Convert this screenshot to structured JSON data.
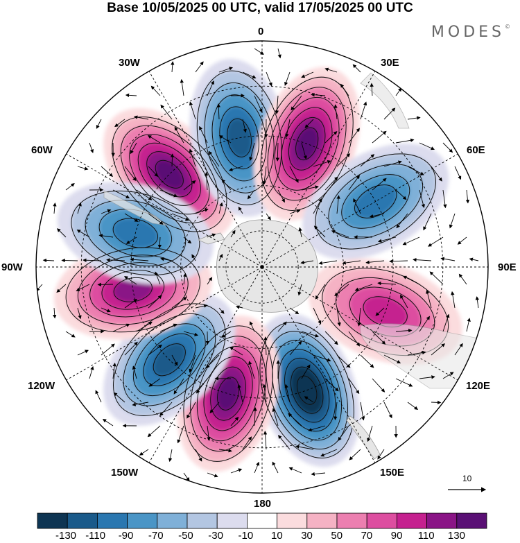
{
  "title": "Base 10/05/2025 00 UTC, valid 17/05/2025 00 UTC",
  "brand": "MODES",
  "brand_mark": "©",
  "longitude_labels": {
    "top": "0",
    "top_right": "30E",
    "right_upper": "60E",
    "right": "90E",
    "right_lower": "120E",
    "bottom_right": "150E",
    "bottom": "180",
    "bottom_left": "150W",
    "left_lower": "120W",
    "left": "90W",
    "left_upper": "60W",
    "top_left": "30W"
  },
  "reference_vector": "10",
  "colorbar": {
    "colors": [
      "#0e3553",
      "#1a5a8a",
      "#2a77b0",
      "#4a95c6",
      "#7fb0d8",
      "#b3c6e2",
      "#dcdcee",
      "#ffffff",
      "#fbdcde",
      "#f5b2c4",
      "#ec7fb0",
      "#dd4ea0",
      "#c5208f",
      "#8a1486",
      "#5a1075"
    ],
    "labels": [
      "-130",
      "-110",
      "-90",
      "-70",
      "-50",
      "-30",
      "-10",
      "10",
      "30",
      "50",
      "70",
      "90",
      "110",
      "130"
    ]
  },
  "anomaly_centers": [
    {
      "sign": "positive",
      "level": 110,
      "longitude": "45W"
    },
    {
      "sign": "negative",
      "level": -90,
      "longitude": "10W"
    },
    {
      "sign": "positive",
      "level": 110,
      "longitude": "20E"
    },
    {
      "sign": "negative",
      "level": -70,
      "longitude": "60E"
    },
    {
      "sign": "positive",
      "level": 70,
      "longitude": "110E"
    },
    {
      "sign": "negative",
      "level": -130,
      "longitude": "160E"
    },
    {
      "sign": "positive",
      "level": 110,
      "longitude": "165W"
    },
    {
      "sign": "negative",
      "level": -90,
      "longitude": "135W"
    },
    {
      "sign": "positive",
      "level": 90,
      "longitude": "100W"
    },
    {
      "sign": "negative",
      "level": -70,
      "longitude": "75W"
    }
  ]
}
